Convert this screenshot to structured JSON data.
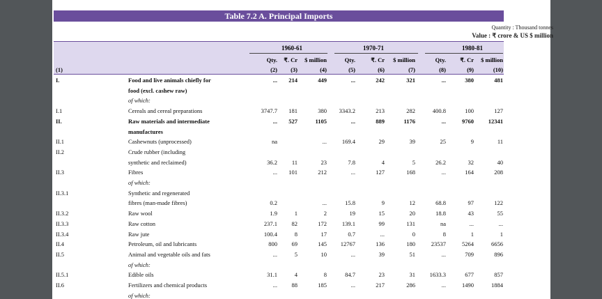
{
  "title": "Table 7.2 A. Principal Imports",
  "quantity_note": "Quantity : Thousand tonnes",
  "value_note": "Value : ₹ crore & US $ million",
  "year_groups": [
    "1960-61",
    "1970-71",
    "1980-81"
  ],
  "col_headers": [
    "Qty.",
    "₹. Cr",
    "$ million",
    "Qty.",
    "₹. Cr",
    "$ million",
    "Qty.",
    "₹. Cr",
    "$ million"
  ],
  "col_numbers": [
    "(1)",
    "(2)",
    "(3)",
    "(4)",
    "(5)",
    "(6)",
    "(7)",
    "(8)",
    "(9)",
    "(10)"
  ],
  "rows": [
    {
      "code": "I.",
      "label": "Food and live animals chiefly for",
      "bold": true,
      "italic": false,
      "v": [
        "...",
        "214",
        "449",
        "...",
        "242",
        "321",
        "...",
        "380",
        "481"
      ]
    },
    {
      "code": "",
      "label": "food (excl. cashew raw)",
      "bold": true,
      "italic": false,
      "v": [
        "",
        "",
        "",
        "",
        "",
        "",
        "",
        "",
        ""
      ]
    },
    {
      "code": "",
      "label": "of which:",
      "bold": false,
      "italic": true,
      "v": [
        "",
        "",
        "",
        "",
        "",
        "",
        "",
        "",
        ""
      ]
    },
    {
      "code": "I.1",
      "label": "Cereals and cereal preparations",
      "bold": false,
      "italic": false,
      "v": [
        "3747.7",
        "181",
        "380",
        "3343.2",
        "213",
        "282",
        "400.8",
        "100",
        "127"
      ]
    },
    {
      "code": "II.",
      "label": "Raw materials and intermediate",
      "bold": true,
      "italic": false,
      "v": [
        "...",
        "527",
        "1105",
        "...",
        "889",
        "1176",
        "...",
        "9760",
        "12341"
      ]
    },
    {
      "code": "",
      "label": "manufactures",
      "bold": true,
      "italic": false,
      "v": [
        "",
        "",
        "",
        "",
        "",
        "",
        "",
        "",
        ""
      ]
    },
    {
      "code": "II.1",
      "label": "Cashewnuts (unprocessed)",
      "bold": false,
      "italic": false,
      "v": [
        "na",
        "",
        "...",
        "169.4",
        "29",
        "39",
        "25",
        "9",
        "11"
      ]
    },
    {
      "code": "II.2",
      "label": "Crude rubber (including",
      "bold": false,
      "italic": false,
      "v": [
        "",
        "",
        "",
        "",
        "",
        "",
        "",
        "",
        ""
      ]
    },
    {
      "code": "",
      "label": "synthetic and reclaimed)",
      "bold": false,
      "italic": false,
      "v": [
        "36.2",
        "11",
        "23",
        "7.8",
        "4",
        "5",
        "26.2",
        "32",
        "40"
      ]
    },
    {
      "code": "II.3",
      "label": "Fibres",
      "bold": false,
      "italic": false,
      "v": [
        "...",
        "101",
        "212",
        "...",
        "127",
        "168",
        "...",
        "164",
        "208"
      ]
    },
    {
      "code": "",
      "label": "of which:",
      "bold": false,
      "italic": true,
      "v": [
        "",
        "",
        "",
        "",
        "",
        "",
        "",
        "",
        ""
      ]
    },
    {
      "code": "II.3.1",
      "label": "Synthetic and regenerated",
      "bold": false,
      "italic": false,
      "v": [
        "",
        "",
        "",
        "",
        "",
        "",
        "",
        "",
        ""
      ]
    },
    {
      "code": "",
      "label": "fibres (man-made fibres)",
      "bold": false,
      "italic": false,
      "v": [
        "0.2",
        "",
        "...",
        "15.8",
        "9",
        "12",
        "68.8",
        "97",
        "122"
      ]
    },
    {
      "code": "II.3.2",
      "label": "Raw wool",
      "bold": false,
      "italic": false,
      "v": [
        "1.9",
        "1",
        "2",
        "19",
        "15",
        "20",
        "18.8",
        "43",
        "55"
      ]
    },
    {
      "code": "II.3.3",
      "label": "Raw cotton",
      "bold": false,
      "italic": false,
      "v": [
        "237.1",
        "82",
        "172",
        "139.1",
        "99",
        "131",
        "na",
        "...",
        "..."
      ]
    },
    {
      "code": "II.3.4",
      "label": "Raw jute",
      "bold": false,
      "italic": false,
      "v": [
        "100.4",
        "8",
        "17",
        "0.7",
        "...",
        "0",
        "8",
        "1",
        "1"
      ]
    },
    {
      "code": "II.4",
      "label": "Petroleum, oil and lubricants",
      "bold": false,
      "italic": false,
      "v": [
        "800",
        "69",
        "145",
        "12767",
        "136",
        "180",
        "23537",
        "5264",
        "6656"
      ]
    },
    {
      "code": "II.5",
      "label": "Animal and vegetable oils and fats",
      "bold": false,
      "italic": false,
      "v": [
        "...",
        "5",
        "10",
        "...",
        "39",
        "51",
        "...",
        "709",
        "896"
      ]
    },
    {
      "code": "",
      "label": "of which:",
      "bold": false,
      "italic": true,
      "v": [
        "",
        "",
        "",
        "",
        "",
        "",
        "",
        "",
        ""
      ]
    },
    {
      "code": "II.5.1",
      "label": "Edible oils",
      "bold": false,
      "italic": false,
      "v": [
        "31.1",
        "4",
        "8",
        "84.7",
        "23",
        "31",
        "1633.3",
        "677",
        "857"
      ]
    },
    {
      "code": "II.6",
      "label": "Fertilizers and chemical products",
      "bold": false,
      "italic": false,
      "v": [
        "...",
        "88",
        "185",
        "...",
        "217",
        "286",
        "...",
        "1490",
        "1884"
      ]
    },
    {
      "code": "",
      "label": "of which:",
      "bold": false,
      "italic": true,
      "v": [
        "",
        "",
        "",
        "",
        "",
        "",
        "",
        "",
        ""
      ]
    }
  ]
}
